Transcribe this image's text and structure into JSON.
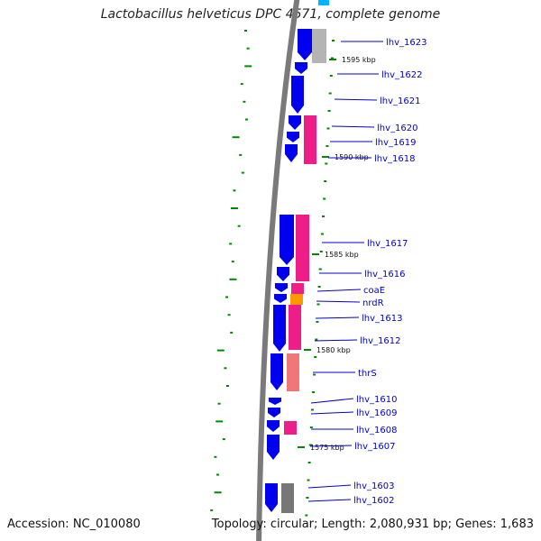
{
  "title": "Lactobacillus helveticus DPC 4571, complete genome",
  "footer": {
    "accession": "Accession: NC_010080",
    "topology": "Topology: circular; Length: 2,080,931 bp; Genes: 1,683"
  },
  "colors": {
    "cds_forward": "#0000ee",
    "cog_pink": "#ee1e88",
    "cog_salmon": "#ee7777",
    "cog_orange": "#ff9900",
    "cog_gray": "#b4b4b4",
    "cog_darkgray": "#777777",
    "cog_cyan": "#00b4ff",
    "gc_skew": "#008800",
    "backbone": "#7a7a7a",
    "label_line": "#0000cc"
  },
  "scale_labels": [
    "1595 kbp",
    "1590 kbp",
    "1585 kbp",
    "1580 kbp",
    "1575 kbp"
  ],
  "genes": [
    {
      "label": "lhv_1623",
      "cog": "gray"
    },
    {
      "label": "lhv_1622",
      "cog": "none"
    },
    {
      "label": "lhv_1621",
      "cog": "none"
    },
    {
      "label": "lhv_1620",
      "cog": "pink"
    },
    {
      "label": "lhv_1619",
      "cog": "pink"
    },
    {
      "label": "lhv_1618",
      "cog": "pink"
    },
    {
      "label": "lhv_1617",
      "cog": "pink"
    },
    {
      "label": "lhv_1616",
      "cog": "pink"
    },
    {
      "label": "coaE",
      "cog": "orange"
    },
    {
      "label": "nrdR",
      "cog": "pink"
    },
    {
      "label": "lhv_1613",
      "cog": "pink"
    },
    {
      "label": "lhv_1612",
      "cog": "pink"
    },
    {
      "label": "thrS",
      "cog": "salmon"
    },
    {
      "label": "lhv_1610",
      "cog": "none"
    },
    {
      "label": "lhv_1609",
      "cog": "none"
    },
    {
      "label": "lhv_1608",
      "cog": "pink"
    },
    {
      "label": "lhv_1607",
      "cog": "none"
    },
    {
      "label": "lhv_1603",
      "cog": "darkgray"
    },
    {
      "label": "lhv_1602",
      "cog": "darkgray"
    }
  ]
}
